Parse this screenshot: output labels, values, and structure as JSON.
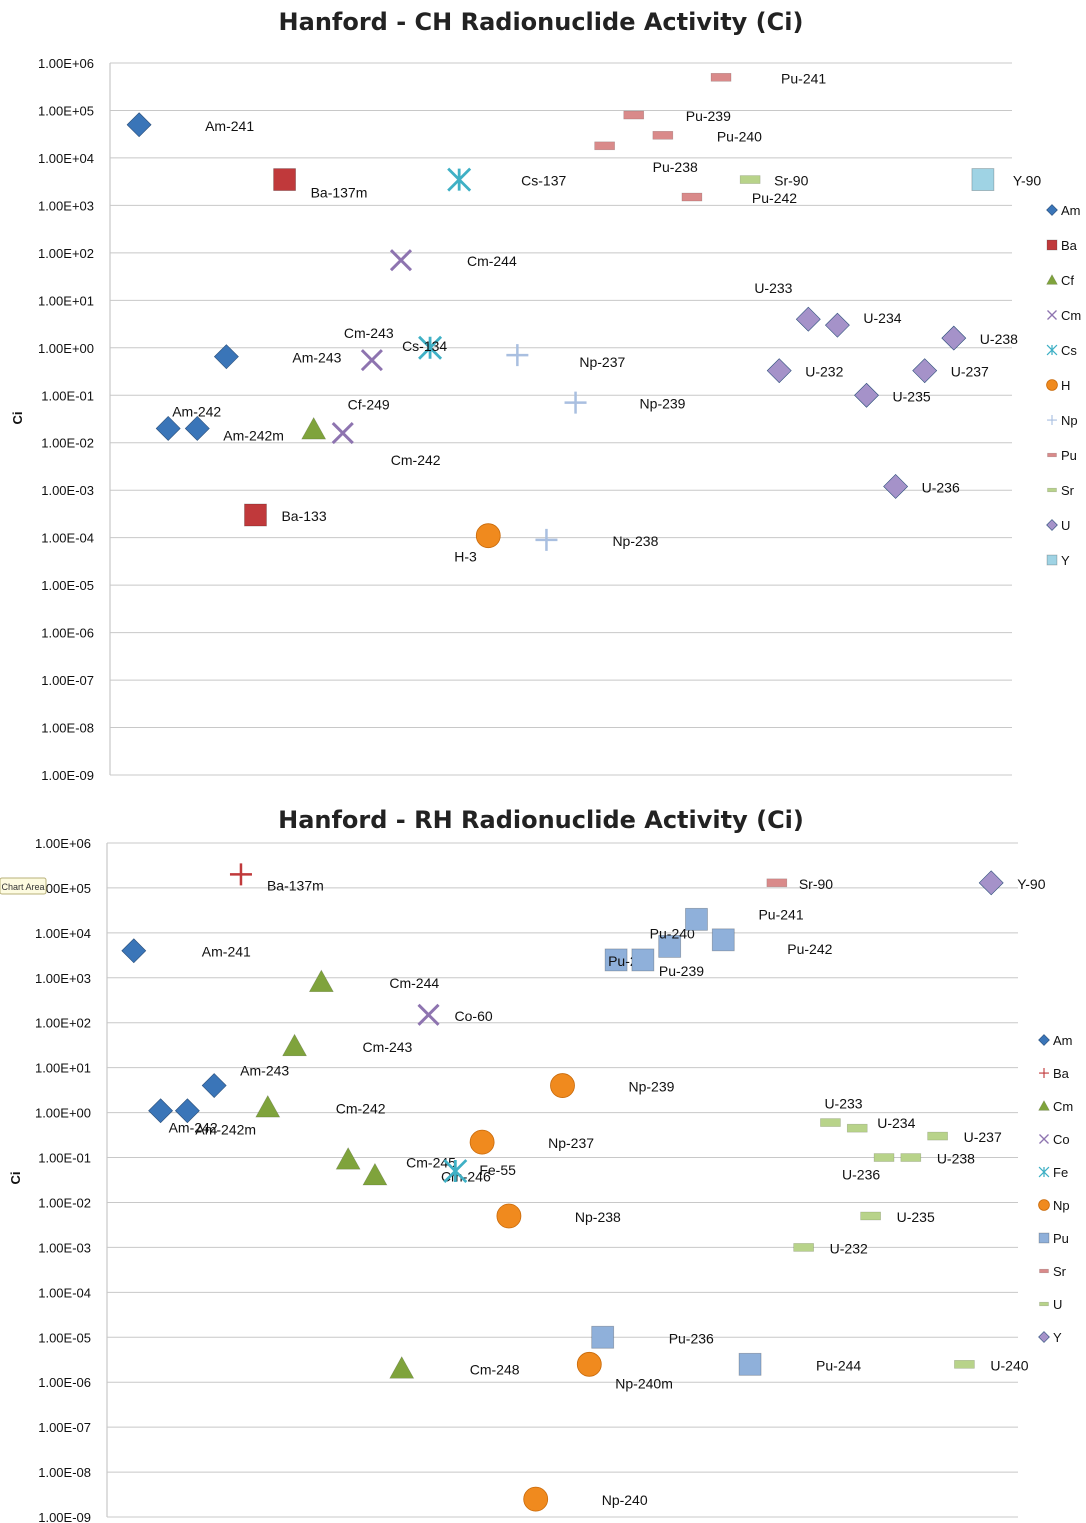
{
  "chart_area_tooltip": "Chart Area",
  "colors": {
    "Am": "#3a75b8",
    "Ba": "#c0393b",
    "Cf": "#7fa33c",
    "Cm": "#8e74b0",
    "Cs": "#3fb0c5",
    "H": "#f08a1e",
    "Np": "#a9bfe0",
    "Pu": "#d98a8a",
    "Sr": "#b8d38a",
    "U": "#a592c9",
    "Y": "#9fd3e4",
    "Co": "#8e74b0",
    "Fe": "#3fb0c5",
    "RH_Pu": "#8fb0da",
    "RH_Sr": "#d98a8a",
    "RH_U": "#b8d38a",
    "RH_Y": "#a592c9",
    "RH_Ba": "#c0393b",
    "RH_Cm": "#7fa33c",
    "RH_Np": "#f08a1e"
  },
  "chart_data": [
    {
      "type": "scatter",
      "title": "Hanford - CH Radionuclide Activity (Ci)",
      "ylabel": "Ci",
      "yscale": "log",
      "ylim": [
        1e-09,
        1000000.0
      ],
      "yticks": [
        "1.00E+06",
        "1.00E+05",
        "1.00E+04",
        "1.00E+03",
        "1.00E+02",
        "1.00E+01",
        "1.00E+00",
        "1.00E-01",
        "1.00E-02",
        "1.00E-03",
        "1.00E-04",
        "1.00E-05",
        "1.00E-06",
        "1.00E-07",
        "1.00E-08",
        "1.00E-09"
      ],
      "grid": true,
      "legend_position": "right",
      "legend": [
        "Am",
        "Ba",
        "Cf",
        "Cm",
        "Cs",
        "H",
        "Np",
        "Pu",
        "Sr",
        "U",
        "Y"
      ],
      "series": [
        {
          "name": "Am",
          "marker": "diamond",
          "points": [
            {
              "label": "Am-241",
              "x": 1,
              "y": 50000
            },
            {
              "label": "Am-243",
              "x": 4,
              "y": 0.65
            },
            {
              "label": "Am-242",
              "x": 2,
              "y": 0.02
            },
            {
              "label": "Am-242m",
              "x": 3,
              "y": 0.02
            }
          ]
        },
        {
          "name": "Ba",
          "marker": "square",
          "points": [
            {
              "label": "Ba-137m",
              "x": 6,
              "y": 3500
            },
            {
              "label": "Ba-133",
              "x": 5,
              "y": 0.0003
            }
          ]
        },
        {
          "name": "Cf",
          "marker": "triangle",
          "points": [
            {
              "label": "Cf-249",
              "x": 7,
              "y": 0.019
            }
          ]
        },
        {
          "name": "Cm",
          "marker": "x",
          "points": [
            {
              "label": "Cm-244",
              "x": 10,
              "y": 70
            },
            {
              "label": "Cm-243",
              "x": 9,
              "y": 0.55
            },
            {
              "label": "Cm-242",
              "x": 8,
              "y": 0.016
            }
          ]
        },
        {
          "name": "Cs",
          "marker": "asterisk",
          "points": [
            {
              "label": "Cs-137",
              "x": 12,
              "y": 3500
            },
            {
              "label": "Cs-134",
              "x": 11,
              "y": 1.0
            }
          ]
        },
        {
          "name": "H",
          "marker": "circle",
          "points": [
            {
              "label": "H-3",
              "x": 13,
              "y": 0.00011
            }
          ]
        },
        {
          "name": "Np",
          "marker": "plus",
          "points": [
            {
              "label": "Np-237",
              "x": 14,
              "y": 0.7
            },
            {
              "label": "Np-239",
              "x": 16,
              "y": 0.07
            },
            {
              "label": "Np-238",
              "x": 15,
              "y": 9e-05
            }
          ]
        },
        {
          "name": "Pu",
          "marker": "dash",
          "points": [
            {
              "label": "Pu-241",
              "x": 21,
              "y": 500000
            },
            {
              "label": "Pu-239",
              "x": 18,
              "y": 80000
            },
            {
              "label": "Pu-240",
              "x": 19,
              "y": 30000
            },
            {
              "label": "Pu-238",
              "x": 17,
              "y": 18000
            },
            {
              "label": "Pu-242",
              "x": 20,
              "y": 1500
            }
          ]
        },
        {
          "name": "Sr",
          "marker": "dash",
          "points": [
            {
              "label": "Sr-90",
              "x": 22,
              "y": 3500
            }
          ]
        },
        {
          "name": "U",
          "marker": "diamond",
          "points": [
            {
              "label": "U-233",
              "x": 24,
              "y": 4
            },
            {
              "label": "U-234",
              "x": 25,
              "y": 3
            },
            {
              "label": "U-238",
              "x": 29,
              "y": 1.6
            },
            {
              "label": "U-232",
              "x": 23,
              "y": 0.33
            },
            {
              "label": "U-237",
              "x": 28,
              "y": 0.33
            },
            {
              "label": "U-235",
              "x": 26,
              "y": 0.1
            },
            {
              "label": "U-236",
              "x": 27,
              "y": 0.0012
            }
          ]
        },
        {
          "name": "Y",
          "marker": "square",
          "points": [
            {
              "label": "Y-90",
              "x": 30,
              "y": 3500
            }
          ]
        }
      ]
    },
    {
      "type": "scatter",
      "title": "Hanford - RH Radionuclide Activity (Ci)",
      "ylabel": "Ci",
      "yscale": "log",
      "ylim": [
        1e-09,
        1000000.0
      ],
      "yticks": [
        "1.00E+06",
        "1.00E+05",
        "1.00E+04",
        "1.00E+03",
        "1.00E+02",
        "1.00E+01",
        "1.00E+00",
        "1.00E-01",
        "1.00E-02",
        "1.00E-03",
        "1.00E-04",
        "1.00E-05",
        "1.00E-06",
        "1.00E-07",
        "1.00E-08",
        "1.00E-09"
      ],
      "grid": true,
      "legend_position": "right",
      "legend": [
        "Am",
        "Ba",
        "Cm",
        "Co",
        "Fe",
        "Np",
        "Pu",
        "Sr",
        "U",
        "Y"
      ],
      "series": [
        {
          "name": "Am",
          "marker": "diamond",
          "points": [
            {
              "label": "Am-241",
              "x": 1,
              "y": 4000
            },
            {
              "label": "Am-243",
              "x": 4,
              "y": 4
            },
            {
              "label": "Am-242",
              "x": 2,
              "y": 1.1
            },
            {
              "label": "Am-242m",
              "x": 3,
              "y": 1.1
            }
          ]
        },
        {
          "name": "Ba",
          "marker": "plus",
          "points": [
            {
              "label": "Ba-137m",
              "x": 5,
              "y": 200000
            }
          ]
        },
        {
          "name": "Cm",
          "marker": "triangle",
          "points": [
            {
              "label": "Cm-244",
              "x": 8,
              "y": 800
            },
            {
              "label": "Cm-243",
              "x": 7,
              "y": 30
            },
            {
              "label": "Cm-242",
              "x": 6,
              "y": 1.3
            },
            {
              "label": "Cm-245",
              "x": 9,
              "y": 0.09
            },
            {
              "label": "Cm-246",
              "x": 10,
              "y": 0.04
            },
            {
              "label": "Cm-248",
              "x": 11,
              "y": 2e-06
            }
          ]
        },
        {
          "name": "Co",
          "marker": "x",
          "points": [
            {
              "label": "Co-60",
              "x": 12,
              "y": 150
            }
          ]
        },
        {
          "name": "Fe",
          "marker": "asterisk",
          "points": [
            {
              "label": "Fe-55",
              "x": 13,
              "y": 0.05
            }
          ]
        },
        {
          "name": "Np",
          "marker": "circle",
          "points": [
            {
              "label": "Np-239",
              "x": 17,
              "y": 4
            },
            {
              "label": "Np-237",
              "x": 14,
              "y": 0.22
            },
            {
              "label": "Np-238",
              "x": 15,
              "y": 0.005
            },
            {
              "label": "Np-240m",
              "x": 18,
              "y": 2.5e-06
            },
            {
              "label": "Np-240",
              "x": 16,
              "y": 2.5e-09
            }
          ]
        },
        {
          "name": "Pu",
          "marker": "square",
          "points": [
            {
              "label": "Pu-238",
              "x": 19,
              "y": 2500
            },
            {
              "label": "Pu-239",
              "x": 20,
              "y": 2500
            },
            {
              "label": "Pu-240",
              "x": 21,
              "y": 5000
            },
            {
              "label": "Pu-241",
              "x": 22,
              "y": 20000
            },
            {
              "label": "Pu-242",
              "x": 23,
              "y": 7000
            },
            {
              "label": "Pu-236",
              "x": 18.5,
              "y": 1e-05
            },
            {
              "label": "Pu-244",
              "x": 24,
              "y": 2.5e-06
            }
          ]
        },
        {
          "name": "Sr",
          "marker": "dash",
          "points": [
            {
              "label": "Sr-90",
              "x": 25,
              "y": 130000
            }
          ]
        },
        {
          "name": "U",
          "marker": "dash",
          "points": [
            {
              "label": "U-233",
              "x": 27,
              "y": 0.6
            },
            {
              "label": "U-234",
              "x": 28,
              "y": 0.45
            },
            {
              "label": "U-237",
              "x": 31,
              "y": 0.3
            },
            {
              "label": "U-236",
              "x": 29,
              "y": 0.1
            },
            {
              "label": "U-238",
              "x": 30,
              "y": 0.1
            },
            {
              "label": "U-235",
              "x": 28.5,
              "y": 0.005
            },
            {
              "label": "U-232",
              "x": 26,
              "y": 0.001
            },
            {
              "label": "U-240",
              "x": 32,
              "y": 2.5e-06
            }
          ]
        },
        {
          "name": "Y",
          "marker": "diamond",
          "points": [
            {
              "label": "Y-90",
              "x": 33,
              "y": 130000
            }
          ]
        }
      ]
    }
  ]
}
